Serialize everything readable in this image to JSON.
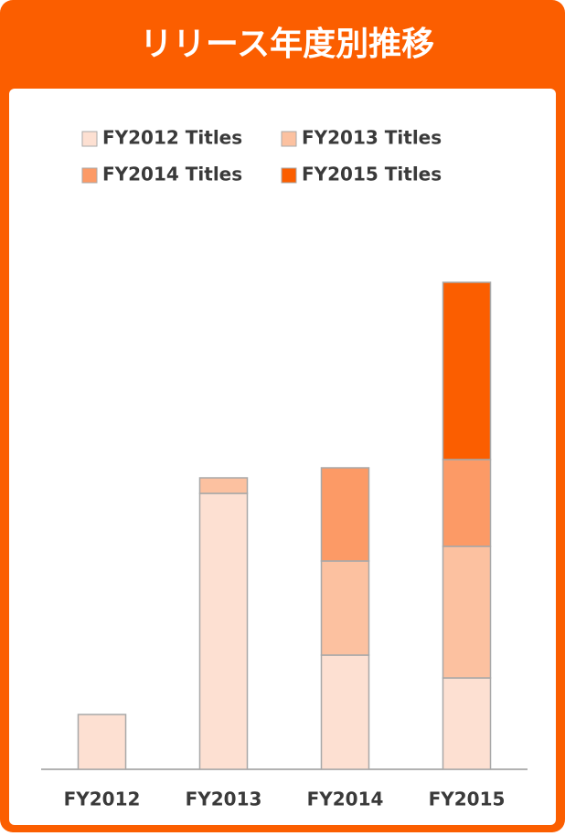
{
  "chart_data": {
    "type": "stacked_bar",
    "title": "リリース年度別推移",
    "categories": [
      "FY2012",
      "FY2013",
      "FY2014",
      "FY2015"
    ],
    "series": [
      {
        "name": "FY2012 Titles",
        "color": "#fde0d2",
        "values": [
          60,
          302,
          125,
          100
        ]
      },
      {
        "name": "FY2013 Titles",
        "color": "#fcc1a0",
        "values": [
          null,
          17,
          103,
          144
        ]
      },
      {
        "name": "FY2014 Titles",
        "color": "#fc9a66",
        "values": [
          null,
          null,
          102,
          95
        ]
      },
      {
        "name": "FY2015 Titles",
        "color": "#fb5e00",
        "values": [
          null,
          null,
          null,
          194
        ]
      }
    ],
    "ylim": [
      0,
      560
    ]
  }
}
